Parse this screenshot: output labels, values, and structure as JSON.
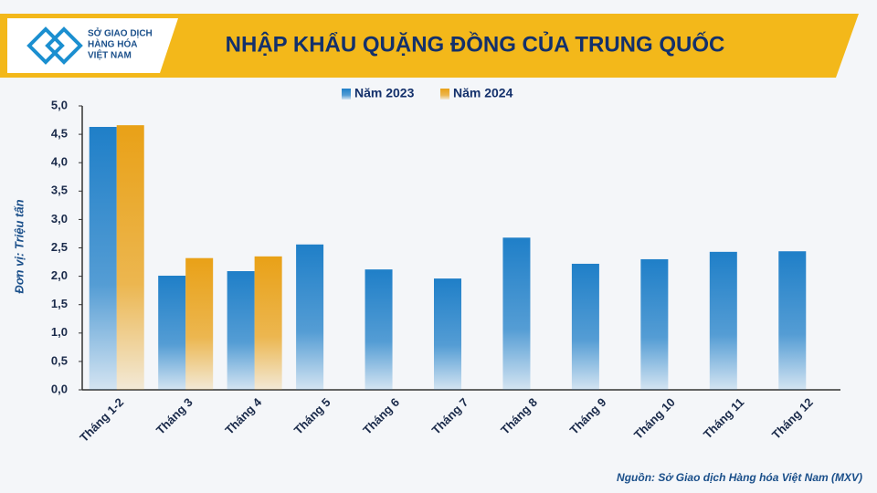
{
  "logo_lines": [
    "SỞ GIAO DỊCH",
    "HÀNG HÓA",
    "VIỆT NAM"
  ],
  "chart_data": {
    "type": "bar",
    "title": "NHẬP KHẨU QUẶNG ĐỒNG CỦA TRUNG QUỐC",
    "y_label": "Đơn vị: Triệu tấn",
    "source": "Nguồn: Sở Giao dịch Hàng hóa Việt Nam (MXV)",
    "categories": [
      "Tháng 1-2",
      "Tháng 3",
      "Tháng 4",
      "Tháng 5",
      "Tháng 6",
      "Tháng 7",
      "Tháng 8",
      "Tháng 9",
      "Tháng 10",
      "Tháng 11",
      "Tháng 12"
    ],
    "series": [
      {
        "name": "Năm 2023",
        "color": "#1f7fc8",
        "values": [
          4.63,
          2.01,
          2.09,
          2.56,
          2.12,
          1.96,
          2.68,
          2.22,
          2.3,
          2.43,
          2.44
        ]
      },
      {
        "name": "Năm 2024",
        "color": "#e9a117",
        "values": [
          4.66,
          2.32,
          2.35,
          null,
          null,
          null,
          null,
          null,
          null,
          null,
          null
        ]
      }
    ],
    "ylim": [
      0,
      5
    ],
    "yticks": [
      {
        "value": 0,
        "label": "0,0"
      },
      {
        "value": 0.5,
        "label": "0,5"
      },
      {
        "value": 1,
        "label": "1,0"
      },
      {
        "value": 1.5,
        "label": "1,5"
      },
      {
        "value": 2,
        "label": "2,0"
      },
      {
        "value": 2.5,
        "label": "2,5"
      },
      {
        "value": 3,
        "label": "3,0"
      },
      {
        "value": 3.5,
        "label": "3,5"
      },
      {
        "value": 4,
        "label": "4,0"
      },
      {
        "value": 4.5,
        "label": "4,5"
      },
      {
        "value": 5,
        "label": "5,0"
      }
    ],
    "grid": false,
    "legend": "top"
  }
}
